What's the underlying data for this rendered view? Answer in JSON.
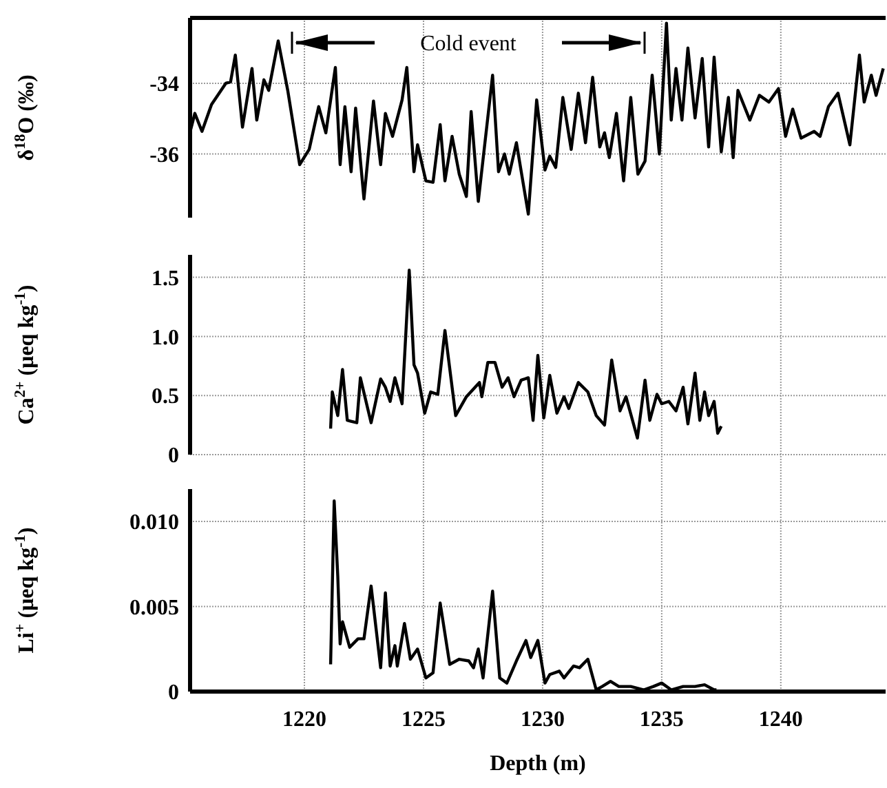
{
  "chart_data": [
    {
      "type": "line",
      "ylabel": "δ$^{18}$O (‰)",
      "xlim": [
        1215.2,
        1244.4
      ],
      "ylim": [
        -37.8,
        -32.15
      ],
      "xticks": [
        1220,
        1225,
        1230,
        1235,
        1240
      ],
      "yticks": [
        -34,
        -36
      ],
      "grid": true,
      "tick_labels": "y",
      "annotations": [
        "Cold event"
      ],
      "series": [
        {
          "color": "#000000",
          "x": [
            1215.23,
            1215.4,
            1215.7,
            1216.1,
            1216.7,
            1216.9,
            1217.1,
            1217.4,
            1217.8,
            1218.0,
            1218.3,
            1218.5,
            1218.9,
            1219.3,
            1219.8,
            1220.2,
            1220.6,
            1220.9,
            1221.3,
            1221.5,
            1221.7,
            1221.96,
            1222.15,
            1222.5,
            1222.9,
            1223.2,
            1223.4,
            1223.7,
            1224.1,
            1224.3,
            1224.6,
            1224.75,
            1225.1,
            1225.4,
            1225.7,
            1225.9,
            1226.2,
            1226.5,
            1226.8,
            1227.0,
            1227.3,
            1227.9,
            1228.15,
            1228.4,
            1228.6,
            1228.9,
            1229.4,
            1229.75,
            1230.1,
            1230.3,
            1230.55,
            1230.85,
            1231.2,
            1231.5,
            1231.8,
            1232.1,
            1232.4,
            1232.6,
            1232.8,
            1233.1,
            1233.4,
            1233.7,
            1234.0,
            1234.3,
            1234.6,
            1234.9,
            1235.2,
            1235.4,
            1235.6,
            1235.85,
            1236.1,
            1236.4,
            1236.7,
            1236.97,
            1237.2,
            1237.5,
            1237.8,
            1238.0,
            1238.2,
            1238.7,
            1239.1,
            1239.5,
            1239.9,
            1240.2,
            1240.5,
            1240.85,
            1241.4,
            1241.65,
            1242.0,
            1242.4,
            1242.9,
            1243.3,
            1243.5,
            1243.8,
            1244.0,
            1244.3
          ],
          "values": [
            -35.3,
            -34.85,
            -35.36,
            -34.6,
            -34.0,
            -33.96,
            -33.2,
            -35.24,
            -33.58,
            -35.04,
            -33.9,
            -34.2,
            -32.8,
            -34.2,
            -36.3,
            -35.87,
            -34.66,
            -35.4,
            -33.55,
            -36.3,
            -34.66,
            -36.5,
            -34.7,
            -37.27,
            -34.5,
            -36.3,
            -34.85,
            -35.5,
            -34.47,
            -33.55,
            -36.5,
            -35.74,
            -36.76,
            -36.8,
            -35.17,
            -36.76,
            -35.5,
            -36.57,
            -37.2,
            -34.8,
            -37.34,
            -33.77,
            -36.5,
            -36.0,
            -36.57,
            -35.68,
            -37.7,
            -34.47,
            -36.45,
            -36.06,
            -36.38,
            -34.4,
            -35.87,
            -34.28,
            -35.68,
            -33.83,
            -35.8,
            -35.4,
            -36.1,
            -34.85,
            -36.76,
            -34.4,
            -36.57,
            -36.2,
            -33.77,
            -36.0,
            -32.3,
            -35.04,
            -33.58,
            -35.04,
            -33.0,
            -34.98,
            -33.3,
            -35.8,
            -33.26,
            -35.94,
            -34.4,
            -36.1,
            -34.2,
            -35.04,
            -34.34,
            -34.53,
            -34.15,
            -35.5,
            -34.73,
            -35.55,
            -35.36,
            -35.5,
            -34.66,
            -34.28,
            -35.74,
            -33.2,
            -34.53,
            -33.77,
            -34.34,
            -33.58
          ]
        }
      ]
    },
    {
      "type": "line",
      "ylabel": "Ca$^{2+}$ (μeq kg$^{-1}$)",
      "xlim": [
        1215.2,
        1244.4
      ],
      "ylim": [
        0,
        1.69
      ],
      "xticks": [
        1220,
        1225,
        1230,
        1235,
        1240
      ],
      "yticks": [
        0,
        {
          "value": 0.5,
          "label": "0.5"
        },
        {
          "value": 1,
          "label": "1.0"
        },
        {
          "value": 1.5,
          "label": "1.5"
        }
      ],
      "grid": true,
      "tick_labels": "y",
      "series": [
        {
          "color": "#000000",
          "x": [
            1221.1,
            1221.17,
            1221.4,
            1221.6,
            1221.8,
            1222.2,
            1222.35,
            1222.8,
            1223.2,
            1223.4,
            1223.6,
            1223.8,
            1224.1,
            1224.4,
            1224.6,
            1224.75,
            1225.05,
            1225.3,
            1225.6,
            1225.9,
            1226.35,
            1226.8,
            1227.35,
            1227.45,
            1227.7,
            1228.0,
            1228.3,
            1228.55,
            1228.8,
            1229.1,
            1229.4,
            1229.6,
            1229.8,
            1230.05,
            1230.3,
            1230.6,
            1230.9,
            1231.1,
            1231.5,
            1231.9,
            1232.25,
            1232.6,
            1232.9,
            1233.25,
            1233.5,
            1233.98,
            1234.3,
            1234.5,
            1234.8,
            1235.0,
            1235.3,
            1235.6,
            1235.9,
            1236.1,
            1236.4,
            1236.6,
            1236.8,
            1236.97,
            1237.2,
            1237.35,
            1237.5
          ],
          "values": [
            0.22,
            0.53,
            0.33,
            0.72,
            0.29,
            0.27,
            0.65,
            0.27,
            0.64,
            0.57,
            0.45,
            0.65,
            0.43,
            1.56,
            0.76,
            0.69,
            0.35,
            0.53,
            0.51,
            1.05,
            0.33,
            0.49,
            0.61,
            0.49,
            0.78,
            0.78,
            0.57,
            0.65,
            0.49,
            0.63,
            0.65,
            0.29,
            0.84,
            0.31,
            0.67,
            0.35,
            0.49,
            0.39,
            0.61,
            0.53,
            0.33,
            0.25,
            0.8,
            0.37,
            0.49,
            0.14,
            0.63,
            0.29,
            0.51,
            0.43,
            0.45,
            0.37,
            0.57,
            0.26,
            0.69,
            0.29,
            0.53,
            0.33,
            0.45,
            0.18,
            0.24
          ]
        }
      ]
    },
    {
      "type": "line",
      "ylabel": "Li$^{+}$ (μeq kg$^{-1}$)",
      "xlabel": "Depth (m)",
      "xlim": [
        1215.2,
        1244.4
      ],
      "ylim": [
        0,
        0.0119
      ],
      "xticks": [
        1220,
        1225,
        1230,
        1235,
        1240
      ],
      "yticks": [
        0,
        0.005,
        {
          "value": 0.01,
          "label": "0.010"
        }
      ],
      "grid": true,
      "series": [
        {
          "color": "#000000",
          "x": [
            1221.1,
            1221.25,
            1221.4,
            1221.5,
            1221.6,
            1221.9,
            1222.25,
            1222.5,
            1222.8,
            1223.2,
            1223.4,
            1223.6,
            1223.8,
            1223.9,
            1224.2,
            1224.45,
            1224.75,
            1225.1,
            1225.4,
            1225.7,
            1226.1,
            1226.5,
            1226.9,
            1227.1,
            1227.3,
            1227.5,
            1227.9,
            1228.2,
            1228.5,
            1228.9,
            1229.3,
            1229.5,
            1229.8,
            1230.1,
            1230.3,
            1230.7,
            1230.9,
            1231.3,
            1231.55,
            1231.9,
            1232.25,
            1232.5,
            1232.85,
            1233.2,
            1233.7,
            1234.25,
            1234.65,
            1235.0,
            1235.4,
            1235.9,
            1236.4,
            1236.8,
            1237.2,
            1237.3
          ],
          "values": [
            0.0016,
            0.0112,
            0.0068,
            0.0028,
            0.0041,
            0.0026,
            0.0031,
            0.0031,
            0.0062,
            0.0014,
            0.0058,
            0.0015,
            0.0027,
            0.0015,
            0.004,
            0.0019,
            0.0025,
            0.0008,
            0.0011,
            0.0052,
            0.0016,
            0.0019,
            0.0018,
            0.0014,
            0.0025,
            0.0008,
            0.0059,
            0.0008,
            0.0005,
            0.0018,
            0.003,
            0.002,
            0.003,
            0.0005,
            0.001,
            0.0012,
            0.0008,
            0.0015,
            0.0014,
            0.0019,
            0.0001,
            0.0003,
            0.0006,
            0.0003,
            0.0003,
            0.0001,
            0.0003,
            0.0005,
            0.0001,
            0.0003,
            0.0003,
            0.0004,
            0.0001,
            0.0001
          ]
        }
      ]
    }
  ]
}
